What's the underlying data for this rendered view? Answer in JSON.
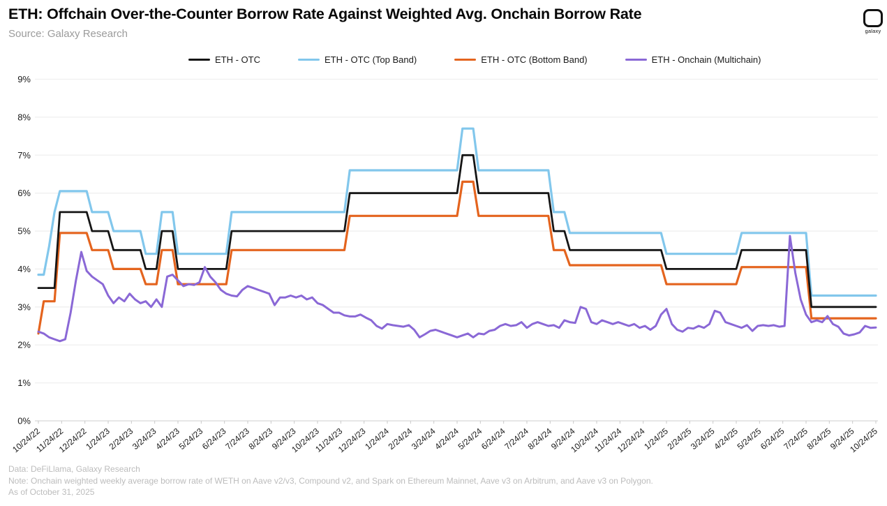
{
  "header": {
    "title": "ETH: Offchain Over-the-Counter Borrow Rate Against Weighted Avg. Onchain Borrow Rate",
    "source": "Source: Galaxy Research",
    "logo_text": "galaxy"
  },
  "footer": {
    "data_line": "Data: DeFiLlama, Galaxy Research",
    "note_line": "Note: Onchain weighted weekly average borrow rate of WETH on Aave v2/v3, Compound v2, and Spark on Ethereum Mainnet, Aave v3 on Arbitrum, and Aave v3 on Polygon.",
    "as_of_line": "As of October 31, 2025"
  },
  "chart_data": {
    "type": "line",
    "title": "ETH: Offchain Over-the-Counter Borrow Rate Against Weighted Avg. Onchain Borrow Rate",
    "x_unit": "weekly observations from 10/24/22 to 10/24/25",
    "ylim": [
      0,
      9
    ],
    "ytick_labels": [
      "0%",
      "1%",
      "2%",
      "3%",
      "4%",
      "5%",
      "6%",
      "7%",
      "8%",
      "9%"
    ],
    "grid": "horizontal-only",
    "legend_position": "top",
    "xtick_labels": [
      "10/24/22",
      "11/24/22",
      "12/24/22",
      "1/24/23",
      "2/24/23",
      "3/24/23",
      "4/24/23",
      "5/24/23",
      "6/24/23",
      "7/24/23",
      "8/24/23",
      "9/24/23",
      "10/24/23",
      "11/24/23",
      "12/24/23",
      "1/24/24",
      "2/24/24",
      "3/24/24",
      "4/24/24",
      "5/24/24",
      "6/24/24",
      "7/24/24",
      "8/24/24",
      "9/24/24",
      "10/24/24",
      "11/24/24",
      "12/24/24",
      "1/24/25",
      "2/24/25",
      "3/24/25",
      "4/24/25",
      "5/24/25",
      "6/24/25",
      "7/24/25",
      "8/24/25",
      "9/24/25",
      "10/24/25"
    ],
    "series": [
      {
        "name": "ETH - OTC",
        "color": "#151515",
        "width": 2.8,
        "values": [
          3.5,
          3.5,
          3.5,
          3.5,
          5.5,
          5.5,
          5.5,
          5.5,
          5.5,
          5.5,
          5,
          5,
          5,
          5,
          4.5,
          4.5,
          4.5,
          4.5,
          4.5,
          4.5,
          4,
          4,
          4,
          5,
          5,
          5,
          4,
          4,
          4,
          4,
          4,
          4,
          4,
          4,
          4,
          4,
          5,
          5,
          5,
          5,
          5,
          5,
          5,
          5,
          5,
          5,
          5,
          5,
          5,
          5,
          5,
          5,
          5,
          5,
          5,
          5,
          5,
          5,
          6,
          6,
          6,
          6,
          6,
          6,
          6,
          6,
          6,
          6,
          6,
          6,
          6,
          6,
          6,
          6,
          6,
          6,
          6,
          6,
          6,
          7,
          7,
          7,
          6,
          6,
          6,
          6,
          6,
          6,
          6,
          6,
          6,
          6,
          6,
          6,
          6,
          6,
          5,
          5,
          5,
          4.5,
          4.5,
          4.5,
          4.5,
          4.5,
          4.5,
          4.5,
          4.5,
          4.5,
          4.5,
          4.5,
          4.5,
          4.5,
          4.5,
          4.5,
          4.5,
          4.5,
          4.5,
          4,
          4,
          4,
          4,
          4,
          4,
          4,
          4,
          4,
          4,
          4,
          4,
          4,
          4,
          4.5,
          4.5,
          4.5,
          4.5,
          4.5,
          4.5,
          4.5,
          4.5,
          4.5,
          4.5,
          4.5,
          4.5,
          4.5,
          3,
          3,
          3,
          3,
          3,
          3,
          3,
          3,
          3,
          3,
          3,
          3,
          3
        ]
      },
      {
        "name": "ETH - OTC (Top Band)",
        "color": "#82C7EC",
        "width": 3.2,
        "values": [
          3.85,
          3.85,
          4.6,
          5.5,
          6.05,
          6.05,
          6.05,
          6.05,
          6.05,
          6.05,
          5.5,
          5.5,
          5.5,
          5.5,
          5,
          5,
          5,
          5,
          5,
          5,
          4.4,
          4.4,
          4.4,
          5.5,
          5.5,
          5.5,
          4.4,
          4.4,
          4.4,
          4.4,
          4.4,
          4.4,
          4.4,
          4.4,
          4.4,
          4.4,
          5.5,
          5.5,
          5.5,
          5.5,
          5.5,
          5.5,
          5.5,
          5.5,
          5.5,
          5.5,
          5.5,
          5.5,
          5.5,
          5.5,
          5.5,
          5.5,
          5.5,
          5.5,
          5.5,
          5.5,
          5.5,
          5.5,
          6.6,
          6.6,
          6.6,
          6.6,
          6.6,
          6.6,
          6.6,
          6.6,
          6.6,
          6.6,
          6.6,
          6.6,
          6.6,
          6.6,
          6.6,
          6.6,
          6.6,
          6.6,
          6.6,
          6.6,
          6.6,
          7.7,
          7.7,
          7.7,
          6.6,
          6.6,
          6.6,
          6.6,
          6.6,
          6.6,
          6.6,
          6.6,
          6.6,
          6.6,
          6.6,
          6.6,
          6.6,
          6.6,
          5.5,
          5.5,
          5.5,
          4.95,
          4.95,
          4.95,
          4.95,
          4.95,
          4.95,
          4.95,
          4.95,
          4.95,
          4.95,
          4.95,
          4.95,
          4.95,
          4.95,
          4.95,
          4.95,
          4.95,
          4.95,
          4.4,
          4.4,
          4.4,
          4.4,
          4.4,
          4.4,
          4.4,
          4.4,
          4.4,
          4.4,
          4.4,
          4.4,
          4.4,
          4.4,
          4.95,
          4.95,
          4.95,
          4.95,
          4.95,
          4.95,
          4.95,
          4.95,
          4.95,
          4.95,
          4.95,
          4.95,
          4.95,
          3.3,
          3.3,
          3.3,
          3.3,
          3.3,
          3.3,
          3.3,
          3.3,
          3.3,
          3.3,
          3.3,
          3.3,
          3.3
        ]
      },
      {
        "name": "ETH - OTC (Bottom Band)",
        "color": "#E4641E",
        "width": 3.2,
        "values": [
          2.3,
          3.15,
          3.15,
          3.15,
          4.95,
          4.95,
          4.95,
          4.95,
          4.95,
          4.95,
          4.5,
          4.5,
          4.5,
          4.5,
          4,
          4,
          4,
          4,
          4,
          4,
          3.6,
          3.6,
          3.6,
          4.5,
          4.5,
          4.5,
          3.6,
          3.6,
          3.6,
          3.6,
          3.6,
          3.6,
          3.6,
          3.6,
          3.6,
          3.6,
          4.5,
          4.5,
          4.5,
          4.5,
          4.5,
          4.5,
          4.5,
          4.5,
          4.5,
          4.5,
          4.5,
          4.5,
          4.5,
          4.5,
          4.5,
          4.5,
          4.5,
          4.5,
          4.5,
          4.5,
          4.5,
          4.5,
          5.4,
          5.4,
          5.4,
          5.4,
          5.4,
          5.4,
          5.4,
          5.4,
          5.4,
          5.4,
          5.4,
          5.4,
          5.4,
          5.4,
          5.4,
          5.4,
          5.4,
          5.4,
          5.4,
          5.4,
          5.4,
          6.3,
          6.3,
          6.3,
          5.4,
          5.4,
          5.4,
          5.4,
          5.4,
          5.4,
          5.4,
          5.4,
          5.4,
          5.4,
          5.4,
          5.4,
          5.4,
          5.4,
          4.5,
          4.5,
          4.5,
          4.1,
          4.1,
          4.1,
          4.1,
          4.1,
          4.1,
          4.1,
          4.1,
          4.1,
          4.1,
          4.1,
          4.1,
          4.1,
          4.1,
          4.1,
          4.1,
          4.1,
          4.1,
          3.6,
          3.6,
          3.6,
          3.6,
          3.6,
          3.6,
          3.6,
          3.6,
          3.6,
          3.6,
          3.6,
          3.6,
          3.6,
          3.6,
          4.05,
          4.05,
          4.05,
          4.05,
          4.05,
          4.05,
          4.05,
          4.05,
          4.05,
          4.05,
          4.05,
          4.05,
          4.05,
          2.7,
          2.7,
          2.7,
          2.7,
          2.7,
          2.7,
          2.7,
          2.7,
          2.7,
          2.7,
          2.7,
          2.7,
          2.7
        ]
      },
      {
        "name": "ETH - Onchain (Multichain)",
        "color": "#8A68D6",
        "width": 3,
        "values": [
          2.35,
          2.3,
          2.2,
          2.15,
          2.1,
          2.15,
          2.85,
          3.7,
          4.45,
          3.95,
          3.8,
          3.7,
          3.6,
          3.3,
          3.1,
          3.25,
          3.15,
          3.35,
          3.2,
          3.1,
          3.15,
          3.0,
          3.2,
          3.0,
          3.8,
          3.85,
          3.7,
          3.55,
          3.6,
          3.58,
          3.65,
          4.05,
          3.8,
          3.65,
          3.45,
          3.35,
          3.3,
          3.28,
          3.45,
          3.55,
          3.5,
          3.45,
          3.4,
          3.35,
          3.05,
          3.25,
          3.25,
          3.3,
          3.25,
          3.3,
          3.2,
          3.25,
          3.1,
          3.05,
          2.95,
          2.85,
          2.85,
          2.78,
          2.75,
          2.75,
          2.8,
          2.72,
          2.65,
          2.5,
          2.43,
          2.55,
          2.52,
          2.5,
          2.48,
          2.52,
          2.4,
          2.2,
          2.28,
          2.37,
          2.4,
          2.35,
          2.3,
          2.25,
          2.2,
          2.25,
          2.3,
          2.2,
          2.3,
          2.28,
          2.37,
          2.4,
          2.5,
          2.55,
          2.5,
          2.52,
          2.6,
          2.45,
          2.55,
          2.6,
          2.55,
          2.5,
          2.52,
          2.45,
          2.65,
          2.6,
          2.58,
          3.0,
          2.95,
          2.6,
          2.55,
          2.65,
          2.6,
          2.55,
          2.6,
          2.55,
          2.5,
          2.55,
          2.45,
          2.5,
          2.4,
          2.5,
          2.8,
          2.95,
          2.55,
          2.4,
          2.35,
          2.45,
          2.43,
          2.5,
          2.45,
          2.55,
          2.9,
          2.85,
          2.6,
          2.55,
          2.5,
          2.45,
          2.52,
          2.37,
          2.5,
          2.52,
          2.5,
          2.52,
          2.48,
          2.5,
          4.87,
          3.9,
          3.2,
          2.8,
          2.6,
          2.65,
          2.6,
          2.76,
          2.55,
          2.48,
          2.3,
          2.25,
          2.28,
          2.33,
          2.5,
          2.45,
          2.46
        ]
      }
    ]
  }
}
